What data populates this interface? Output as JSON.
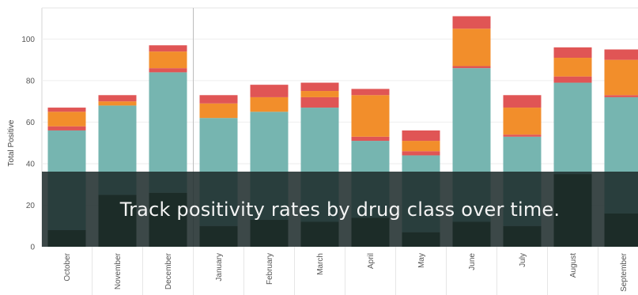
{
  "chart_data": {
    "type": "bar",
    "stacked": true,
    "ylabel": "Total Positive",
    "xlabel": "",
    "ylim": [
      0,
      115
    ],
    "yticks": [
      0,
      20,
      40,
      60,
      80,
      100
    ],
    "grid": true,
    "categories": [
      "October",
      "November",
      "December",
      "January",
      "February",
      "March",
      "April",
      "May",
      "June",
      "July",
      "August",
      "September"
    ],
    "series": [
      {
        "color": "#1f3a1f",
        "values": [
          8,
          25,
          26,
          10,
          13,
          12,
          14,
          7,
          12,
          10,
          35,
          16
        ]
      },
      {
        "color": "#76b5b0",
        "values": [
          48,
          43,
          58,
          52,
          52,
          55,
          37,
          37,
          74,
          43,
          44,
          56
        ]
      },
      {
        "color": "#e05555",
        "values": [
          2,
          0,
          2,
          0,
          0,
          5,
          2,
          2,
          1,
          1,
          3,
          1
        ]
      },
      {
        "color": "#f28e2b",
        "values": [
          7,
          2,
          8,
          7,
          7,
          3,
          20,
          5,
          18,
          13,
          9,
          17
        ]
      },
      {
        "color": "#e05555",
        "values": [
          2,
          3,
          3,
          4,
          6,
          4,
          3,
          5,
          6,
          6,
          5,
          5
        ]
      }
    ]
  },
  "overlay": {
    "caption": "Track positivity rates by drug class over time."
  }
}
